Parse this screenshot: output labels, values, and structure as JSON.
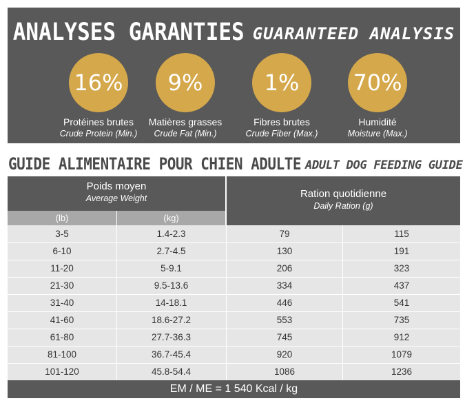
{
  "analysis": {
    "title_fr": "ANALYSES GARANTIES",
    "title_en": "GUARANTEED ANALYSIS",
    "items": [
      {
        "value": "16%",
        "label_fr": "Protéines brutes",
        "label_en": "Crude Protein (Min.)"
      },
      {
        "value": "9%",
        "label_fr": "Matières grasses",
        "label_en": "Crude Fat (Min.)"
      },
      {
        "value": "1%",
        "label_fr": "Fibres brutes",
        "label_en": "Crude Fiber (Max.)"
      },
      {
        "value": "70%",
        "label_fr": "Humidité",
        "label_en": "Moisture (Max.)"
      }
    ],
    "accent_color": "#d5a84b",
    "panel_color": "#595959"
  },
  "guide": {
    "title_fr": "GUIDE ALIMENTAIRE POUR CHIEN ADULTE",
    "title_en": "ADULT DOG FEEDING GUIDE",
    "weight_header_fr": "Poids moyen",
    "weight_header_en": "Average Weight",
    "unit_lb": "(lb)",
    "unit_kg": "(kg)",
    "ration_header_fr": "Ration quotidienne",
    "ration_header_en": "Daily Ration (g)",
    "rows": [
      [
        "3-5",
        "1.4-2.3",
        "79",
        "115"
      ],
      [
        "6-10",
        "2.7-4.5",
        "130",
        "191"
      ],
      [
        "11-20",
        "5-9.1",
        "206",
        "323"
      ],
      [
        "21-30",
        "9.5-13.6",
        "334",
        "437"
      ],
      [
        "31-40",
        "14-18.1",
        "446",
        "541"
      ],
      [
        "41-60",
        "18.6-27.2",
        "553",
        "735"
      ],
      [
        "61-80",
        "27.7-36.3",
        "745",
        "912"
      ],
      [
        "81-100",
        "36.7-45.4",
        "920",
        "1079"
      ],
      [
        "101-120",
        "45.8-54.4",
        "1086",
        "1236"
      ]
    ],
    "footer": "EM / ME = 1 540 Kcal / kg"
  }
}
